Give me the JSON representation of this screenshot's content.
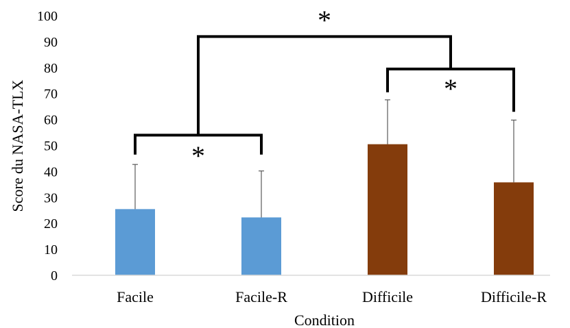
{
  "chart_data": {
    "type": "bar",
    "categories": [
      "Facile",
      "Facile-R",
      "Difficile",
      "Difficile-R"
    ],
    "values": [
      25.5,
      22.3,
      50.5,
      35.8
    ],
    "error_upper": [
      42.7,
      40.2,
      67.6,
      59.8
    ],
    "bar_colors": [
      "#5b9bd5",
      "#5b9bd5",
      "#843c0c",
      "#843c0c"
    ],
    "xlabel": "Condition",
    "ylabel": "Score du NASA-TLX",
    "ylim": [
      0,
      100
    ],
    "yticks": [
      "0",
      "10",
      "20",
      "30",
      "40",
      "50",
      "60",
      "70",
      "80",
      "90",
      "100"
    ],
    "grid": false,
    "legend": "none",
    "significance": [
      {
        "label": "*",
        "left": "Facile",
        "right": "Facile-R",
        "level": 54
      },
      {
        "label": "*",
        "left": "Difficile",
        "right": "Difficile-R",
        "level": 79.5
      },
      {
        "label": "*",
        "left": "Facile / Facile-R",
        "right": "Difficile / Difficile-R",
        "level": 92
      }
    ]
  }
}
